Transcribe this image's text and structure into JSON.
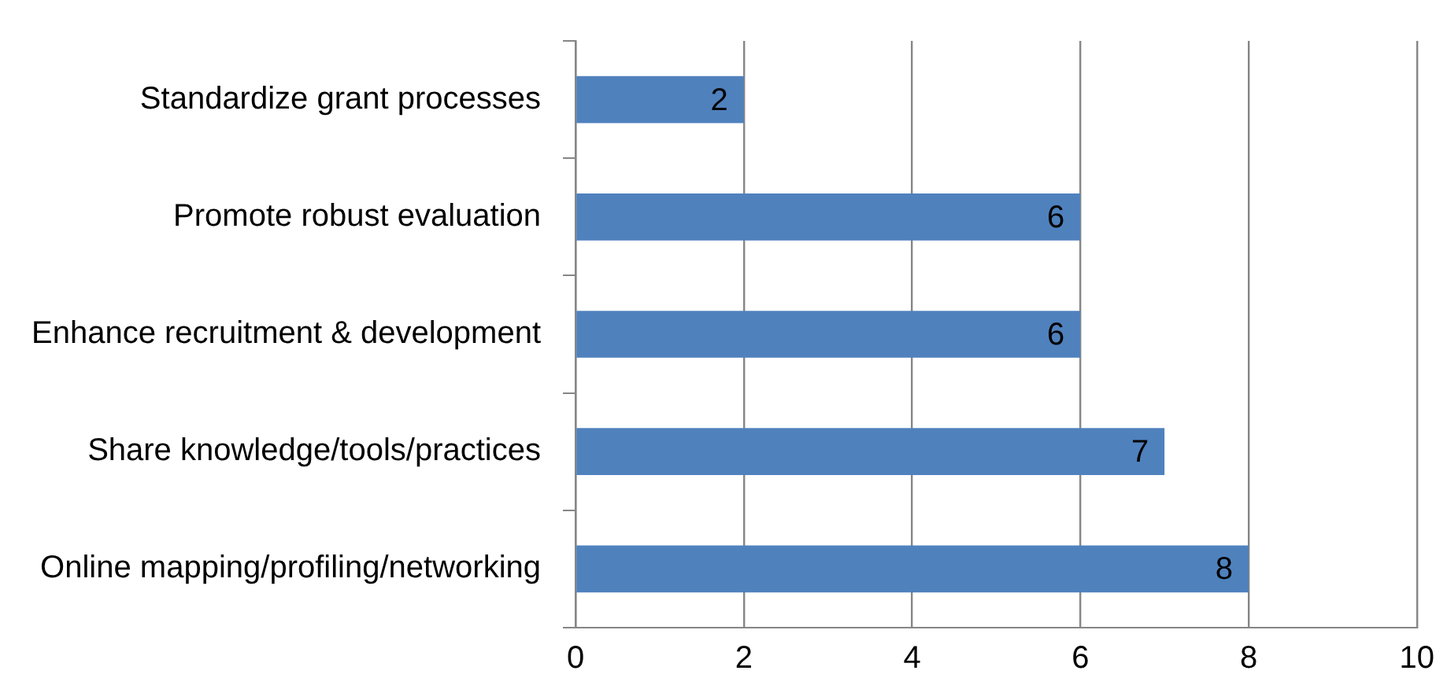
{
  "chart_data": {
    "type": "bar",
    "orientation": "horizontal",
    "categories": [
      "Standardize grant processes",
      "Promote robust evaluation",
      "Enhance recruitment & development",
      "Share knowledge/tools/practices",
      "Online mapping/profiling/networking"
    ],
    "values": [
      2,
      6,
      6,
      7,
      8
    ],
    "color": "#4f81bd",
    "xlim": [
      0,
      10
    ],
    "xticks": [
      0,
      2,
      4,
      6,
      8,
      10
    ],
    "grid": "x",
    "data_labels": true
  }
}
